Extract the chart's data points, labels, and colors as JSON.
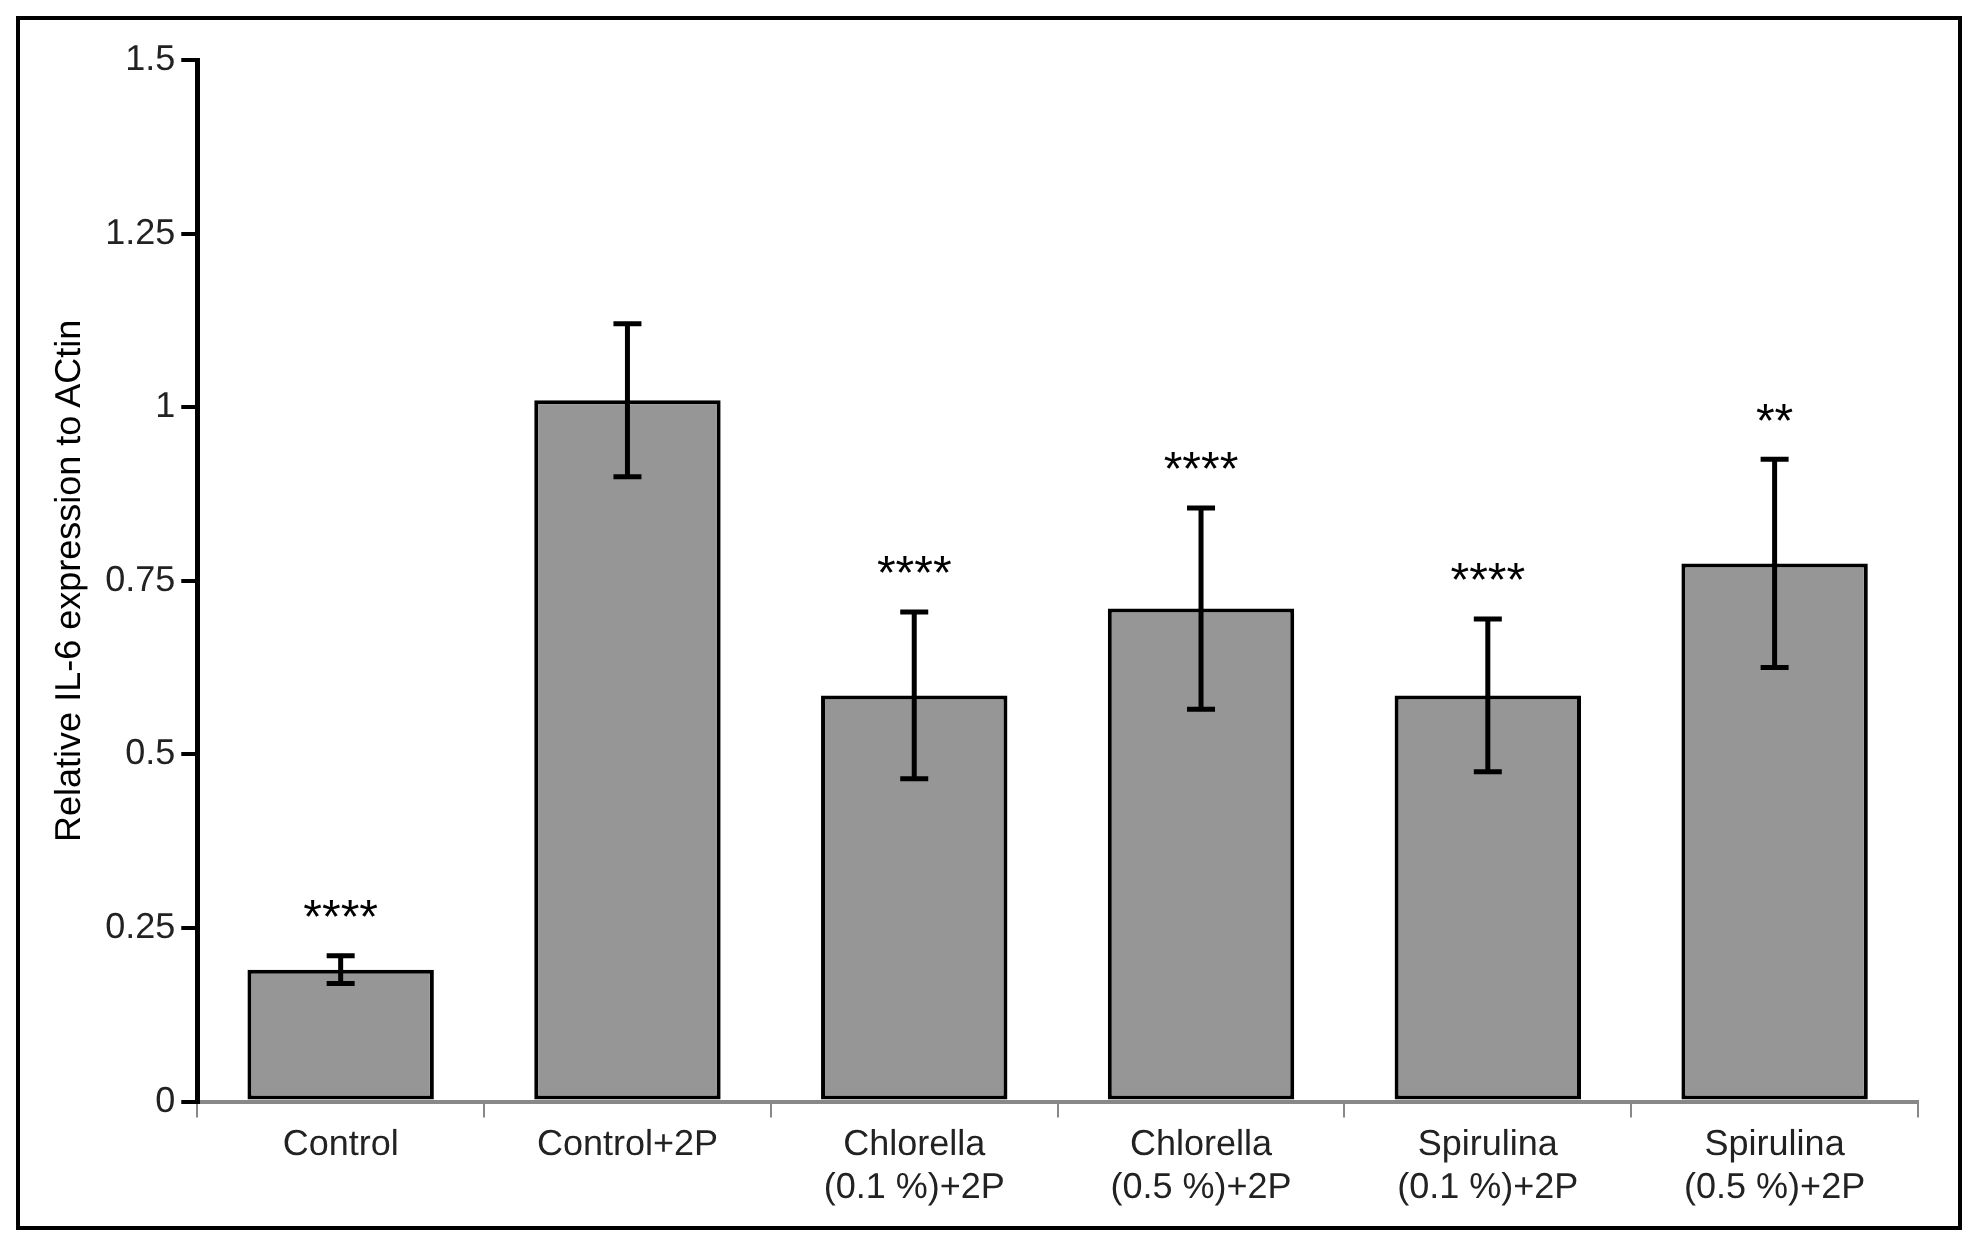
{
  "chart_data": {
    "type": "bar",
    "ylabel": "Relative IL-6 expression to ACtin",
    "categories": [
      "Control",
      "Control+2P",
      "Chlorella (0.1 %)+2P",
      "Chlorella (0.5 %)+2P",
      "Spirulina (0.1 %)+2P",
      "Spirulina (0.5 %)+2P"
    ],
    "values": [
      0.19,
      1.01,
      0.585,
      0.71,
      0.585,
      0.775
    ],
    "errors": [
      0.02,
      0.11,
      0.12,
      0.145,
      0.11,
      0.15
    ],
    "color": "#969696",
    "ylim": [
      0,
      1.5
    ],
    "yticks": [
      0,
      0.25,
      0.5,
      0.75,
      1,
      1.25,
      1.5
    ],
    "grid": false,
    "legend": false,
    "annotations": [
      {
        "text": "****",
        "x": "Control",
        "y": 0.21
      },
      {
        "text": "****",
        "x": "Chlorella (0.1 %)+2P",
        "y": 0.705
      },
      {
        "text": "****",
        "x": "Chlorella (0.5 %)+2P",
        "y": 0.855
      },
      {
        "text": "****",
        "x": "Spirulina (0.1 %)+2P",
        "y": 0.695
      },
      {
        "text": "**",
        "x": "Spirulina (0.5 %)+2P",
        "y": 0.925
      }
    ]
  }
}
